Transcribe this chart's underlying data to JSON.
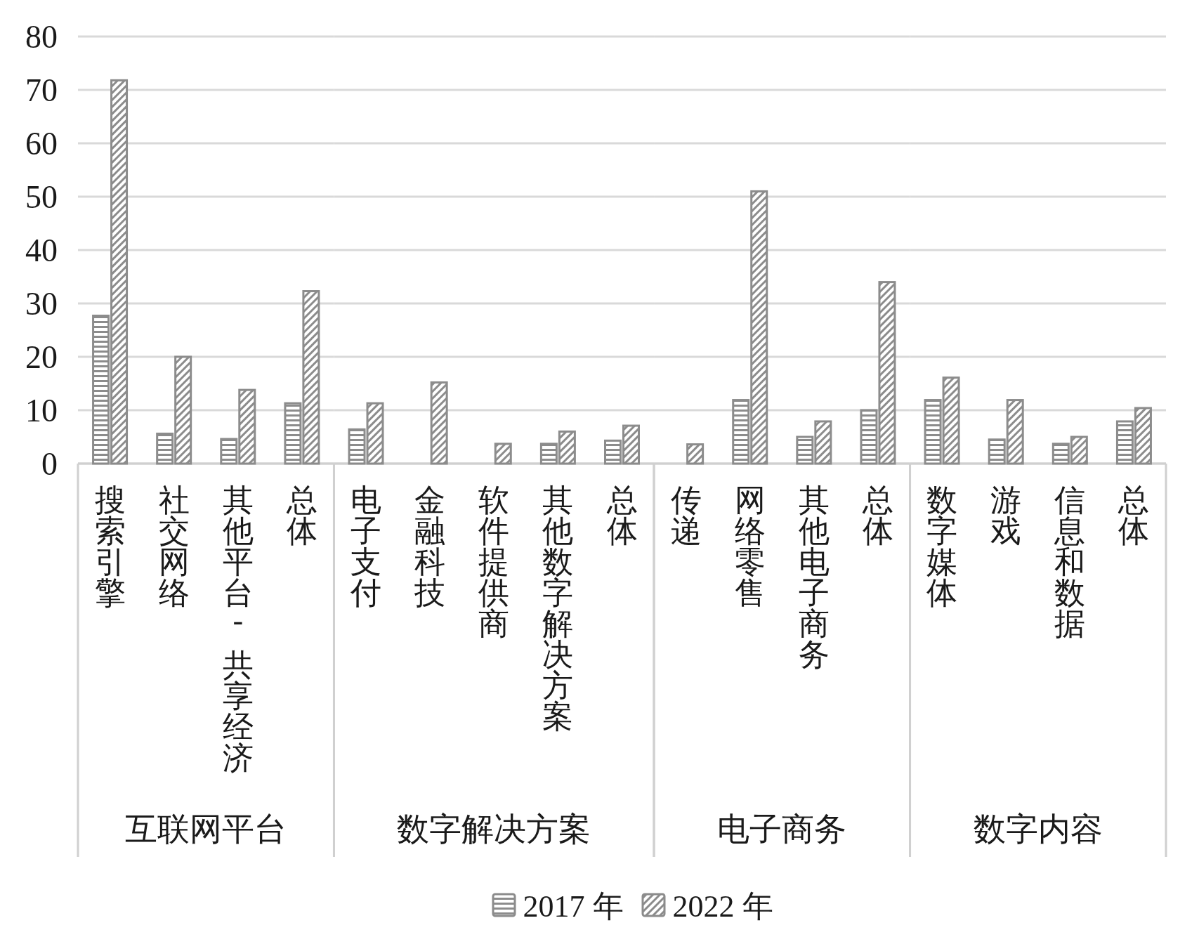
{
  "chart_data": [
    {
      "type": "bar",
      "xlabel": "互联网平台",
      "categories": [
        "搜索引擎",
        "社交网络",
        "其他平台 - 共享经济",
        "总体"
      ],
      "series": [
        {
          "name": "2017 年",
          "color": "#8c8c8c",
          "values": [
            27.7,
            5.6,
            4.6,
            11.3
          ]
        },
        {
          "name": "2022 年",
          "color": "#8c8c8c",
          "values": [
            71.8,
            20.0,
            13.8,
            32.3
          ]
        }
      ],
      "ylim": [
        0,
        80
      ],
      "yticks": [
        0,
        10,
        20,
        30,
        40,
        50,
        60,
        70,
        80
      ],
      "grid": "y",
      "legend": "bottom"
    },
    {
      "type": "bar",
      "xlabel": "数字解决方案",
      "categories": [
        "电子支付",
        "金融科技",
        "软件提供商",
        "其他数字解决方案",
        "总体"
      ],
      "series": [
        {
          "color": "#8c8c8c",
          "values": [
            6.4,
            null,
            null,
            3.7,
            4.3
          ]
        },
        {
          "color": "#8c8c8c",
          "values": [
            11.3,
            15.2,
            3.7,
            6.0,
            7.1
          ]
        }
      ],
      "ylim": [
        0,
        80
      ],
      "yticks": [
        0,
        10,
        20,
        30,
        40,
        50,
        60,
        70,
        80
      ],
      "grid": "y",
      "tick_labels": "x"
    },
    {
      "type": "bar",
      "xlabel": "电子商务",
      "categories": [
        "传递",
        "网络零售",
        "其他电子商务",
        "总体"
      ],
      "series": [
        {
          "color": "#8c8c8c",
          "values": [
            null,
            11.9,
            5.0,
            10.0
          ]
        },
        {
          "color": "#8c8c8c",
          "values": [
            3.6,
            51.0,
            7.9,
            34.0
          ]
        }
      ],
      "ylim": [
        0,
        80
      ],
      "yticks": [
        0,
        10,
        20,
        30,
        40,
        50,
        60,
        70,
        80
      ],
      "grid": "y",
      "tick_labels": "x"
    },
    {
      "type": "bar",
      "xlabel": "数字内容",
      "categories": [
        "数字媒体",
        "游戏",
        "信息和数据",
        "总体"
      ],
      "series": [
        {
          "color": "#8c8c8c",
          "values": [
            11.9,
            4.5,
            3.7,
            7.9
          ]
        },
        {
          "color": "#8c8c8c",
          "values": [
            16.1,
            11.9,
            5.0,
            10.4
          ]
        }
      ],
      "ylim": [
        0,
        80
      ],
      "yticks": [
        0,
        10,
        20,
        30,
        40,
        50,
        60,
        70,
        80
      ],
      "grid": "y",
      "tick_labels": "x"
    }
  ]
}
